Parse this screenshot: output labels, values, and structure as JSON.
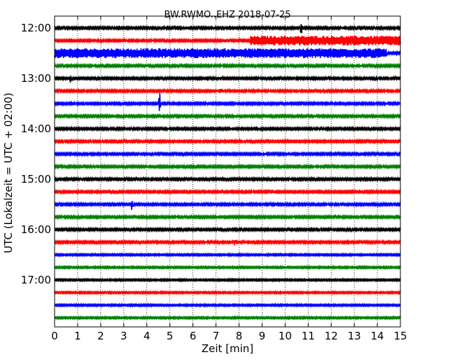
{
  "chart_data": {
    "type": "line",
    "title": "BW.RWMO..EHZ 2018-07-25",
    "xlabel": "Zeit  [min]",
    "ylabel": "UTC (Lokalzeit = UTC + 02:00)",
    "xlim": [
      0,
      15
    ],
    "x_ticks": [
      0,
      1,
      2,
      3,
      4,
      5,
      6,
      7,
      8,
      9,
      10,
      11,
      12,
      13,
      14,
      15
    ],
    "y_tick_labels": [
      "12:00",
      "13:00",
      "14:00",
      "15:00",
      "16:00",
      "17:00"
    ],
    "grid": "vertical dotted",
    "colors": [
      "#000000",
      "#ff0000",
      "#0000ff",
      "#008000"
    ],
    "traces": [
      {
        "start": "12:00",
        "color": "#000000",
        "amp": 1.5,
        "events": [
          {
            "t": 5.7,
            "a": 3,
            "w": 0.3
          },
          {
            "t": 10.7,
            "a": 11,
            "w": 0.08
          },
          {
            "t": 12.5,
            "a": 2.5,
            "w": 0.2
          }
        ]
      },
      {
        "start": "12:15",
        "color": "#ff0000",
        "amp": 1.5,
        "events": [
          {
            "t": 2.0,
            "a": 6,
            "w": 0.06
          },
          {
            "t": 7.4,
            "a": 3,
            "w": 0.2
          },
          {
            "t": 8.5,
            "a": 8,
            "w": 0.05
          }
        ],
        "band": {
          "from": 8.5,
          "to": 15,
          "amp": 7
        }
      },
      {
        "start": "12:30",
        "color": "#0000ff",
        "amp": 1.5,
        "band": {
          "from": 0,
          "to": 14.4,
          "amp": 7
        }
      },
      {
        "start": "12:45",
        "color": "#008000",
        "amp": 1.5,
        "events": [
          {
            "t": 4,
            "a": 2,
            "w": 0.15
          },
          {
            "t": 5,
            "a": 2,
            "w": 0.15
          }
        ]
      },
      {
        "start": "13:00",
        "color": "#000000",
        "amp": 1.5,
        "events": [
          {
            "t": 0.7,
            "a": 8,
            "w": 0.06
          },
          {
            "t": 7.2,
            "a": 3,
            "w": 0.15
          }
        ]
      },
      {
        "start": "13:15",
        "color": "#ff0000",
        "amp": 1.5,
        "events": [
          {
            "t": 7.2,
            "a": 4,
            "w": 0.3
          }
        ]
      },
      {
        "start": "13:30",
        "color": "#0000ff",
        "amp": 1.5,
        "events": [
          {
            "t": 4.55,
            "a": 22,
            "w": 0.05
          }
        ]
      },
      {
        "start": "13:45",
        "color": "#008000",
        "amp": 1.5,
        "events": [
          {
            "t": 1.4,
            "a": 2,
            "w": 0.2
          },
          {
            "t": 11.3,
            "a": 2.5,
            "w": 0.2
          }
        ]
      },
      {
        "start": "14:00",
        "color": "#000000",
        "amp": 1.5,
        "events": [
          {
            "t": 1.4,
            "a": 2,
            "w": 0.2
          }
        ]
      },
      {
        "start": "14:15",
        "color": "#ff0000",
        "amp": 1.5,
        "events": [
          {
            "t": 8.2,
            "a": 2,
            "w": 0.3
          }
        ]
      },
      {
        "start": "14:30",
        "color": "#0000ff",
        "amp": 1.5,
        "events": [
          {
            "t": 9,
            "a": 2,
            "w": 0.3
          }
        ]
      },
      {
        "start": "14:45",
        "color": "#008000",
        "amp": 1.5,
        "events": [
          {
            "t": 2.2,
            "a": 2,
            "w": 0.2
          }
        ]
      },
      {
        "start": "15:00",
        "color": "#000000",
        "amp": 1.5,
        "events": [
          {
            "t": 1.1,
            "a": 2,
            "w": 0.4
          }
        ]
      },
      {
        "start": "15:15",
        "color": "#ff0000",
        "amp": 1.5,
        "events": [
          {
            "t": 3.1,
            "a": 4,
            "w": 0.08
          },
          {
            "t": 9.5,
            "a": 3,
            "w": 0.08
          },
          {
            "t": 12.4,
            "a": 2,
            "w": 0.1
          }
        ]
      },
      {
        "start": "15:30",
        "color": "#0000ff",
        "amp": 1.5,
        "events": [
          {
            "t": 3.35,
            "a": 9,
            "w": 0.06
          },
          {
            "t": 6.3,
            "a": 2,
            "w": 0.1
          }
        ]
      },
      {
        "start": "15:45",
        "color": "#008000",
        "amp": 1.5,
        "events": [
          {
            "t": 1.1,
            "a": 2,
            "w": 0.1
          },
          {
            "t": 12.4,
            "a": 3.5,
            "w": 0.06
          }
        ]
      },
      {
        "start": "16:00",
        "color": "#000000",
        "amp": 1.5,
        "events": []
      },
      {
        "start": "16:15",
        "color": "#ff0000",
        "amp": 1.5,
        "events": [
          {
            "t": 7.8,
            "a": 6,
            "w": 0.06
          },
          {
            "t": 14.9,
            "a": 2,
            "w": 0.1
          }
        ]
      },
      {
        "start": "16:30",
        "color": "#0000ff",
        "amp": 1.2,
        "events": []
      },
      {
        "start": "16:45",
        "color": "#008000",
        "amp": 1.2,
        "events": []
      },
      {
        "start": "17:00",
        "color": "#000000",
        "amp": 1.2,
        "events": [
          {
            "t": 1.0,
            "a": 2,
            "w": 0.2
          },
          {
            "t": 9.0,
            "a": 1.5,
            "w": 0.2
          }
        ]
      },
      {
        "start": "17:15",
        "color": "#ff0000",
        "amp": 1.2,
        "events": []
      },
      {
        "start": "17:30",
        "color": "#0000ff",
        "amp": 1.2,
        "events": []
      },
      {
        "start": "17:45",
        "color": "#008000",
        "amp": 1.2,
        "events": []
      }
    ]
  }
}
